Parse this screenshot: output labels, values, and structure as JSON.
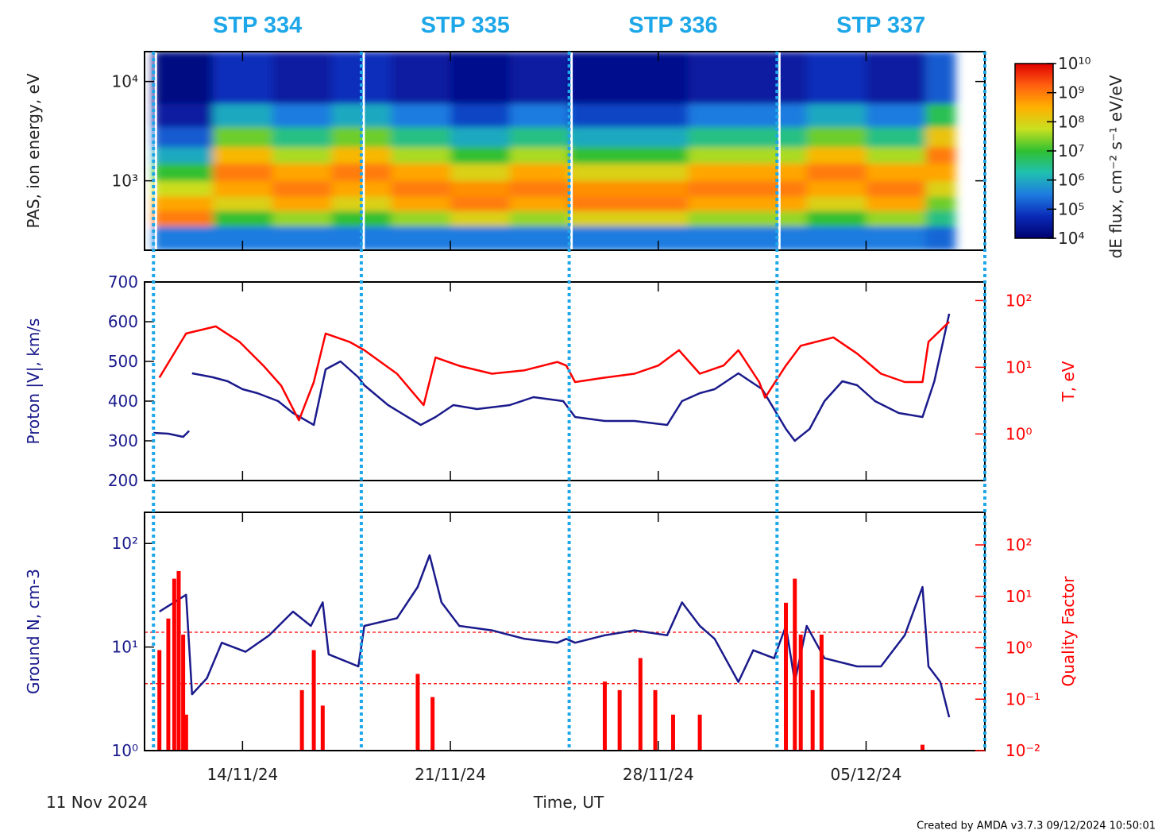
{
  "stp": {
    "boundaries": [
      0,
      7,
      14,
      21,
      28
    ],
    "labels": [
      "STP 334",
      "STP 335",
      "STP 336",
      "STP 337"
    ],
    "color": "#1ea7e8"
  },
  "time_axis": {
    "xlim": [
      -0.3,
      28
    ],
    "xticks": [
      {
        "value": 3,
        "label": "14/11/24"
      },
      {
        "value": 10,
        "label": "21/11/24"
      },
      {
        "value": 17,
        "label": "28/11/24"
      },
      {
        "value": 24,
        "label": "05/12/24"
      }
    ],
    "xlabel": "Time, UT",
    "start_label": "11 Nov 2024"
  },
  "footer": "Created by AMDA v3.7.3 09/12/2024 10:50:01",
  "chart_data": [
    {
      "type": "heatmap",
      "ylabel": "PAS, ion energy, eV",
      "ylog": true,
      "ylim": [
        200,
        20000
      ],
      "yticks": [
        {
          "value": 1000,
          "label": "10³"
        },
        {
          "value": 10000,
          "label": "10⁴"
        }
      ],
      "x_edges": [
        0,
        2,
        4,
        6,
        8,
        10,
        12,
        14,
        16,
        18,
        20,
        22,
        24,
        26,
        27
      ],
      "y_edges": [
        200,
        350,
        500,
        700,
        1000,
        1500,
        2200,
        3500,
        6000,
        20000
      ],
      "z": [
        [
          320000.0,
          320000.0,
          320000.0,
          320000.0,
          320000.0,
          320000.0,
          320000.0,
          320000.0,
          320000.0,
          320000.0,
          320000.0,
          320000.0,
          320000.0,
          200000.0
        ],
        [
          1000000000.0,
          10000000.0,
          32000000.0,
          10000000.0,
          32000000.0,
          100000000.0,
          32000000.0,
          100000000.0,
          100000000.0,
          32000000.0,
          32000000.0,
          10000000.0,
          32000000.0,
          3200000.0
        ],
        [
          400000000.0,
          100000000.0,
          400000000.0,
          100000000.0,
          400000000.0,
          1000000000.0,
          400000000.0,
          1000000000.0,
          1000000000.0,
          400000000.0,
          400000000.0,
          100000000.0,
          400000000.0,
          20000000.0
        ],
        [
          63000000.0,
          400000000.0,
          1000000000.0,
          400000000.0,
          1000000000.0,
          630000000.0,
          1000000000.0,
          630000000.0,
          630000000.0,
          1000000000.0,
          1000000000.0,
          400000000.0,
          1000000000.0,
          100000000.0
        ],
        [
          10000000.0,
          1000000000.0,
          400000000.0,
          1000000000.0,
          400000000.0,
          100000000.0,
          400000000.0,
          100000000.0,
          100000000.0,
          400000000.0,
          400000000.0,
          1000000000.0,
          400000000.0,
          400000000.0
        ],
        [
          1000000.0,
          250000000.0,
          40000000.0,
          250000000.0,
          40000000.0,
          10000000.0,
          40000000.0,
          10000000.0,
          10000000.0,
          40000000.0,
          40000000.0,
          250000000.0,
          40000000.0,
          1000000000.0
        ],
        [
          160000.0,
          20000000.0,
          3200000.0,
          20000000.0,
          3200000.0,
          1000000.0,
          3200000.0,
          1000000.0,
          1000000.0,
          3200000.0,
          3200000.0,
          20000000.0,
          3200000.0,
          160000000.0
        ],
        [
          32000.0,
          1000000.0,
          320000.0,
          1000000.0,
          320000.0,
          100000.0,
          320000.0,
          100000.0,
          100000.0,
          320000.0,
          320000.0,
          1000000.0,
          320000.0,
          6300000.0
        ],
        [
          16000.0,
          63000.0,
          32000.0,
          63000.0,
          32000.0,
          20000.0,
          32000.0,
          20000.0,
          20000.0,
          32000.0,
          32000.0,
          63000.0,
          32000.0,
          160000.0
        ]
      ],
      "colorbar": {
        "label": "dE flux, cm⁻² s⁻¹ eV/eV",
        "zlim": [
          10000.0,
          10000000000.0
        ],
        "log": true,
        "ticks": [
          {
            "value": 10000.0,
            "label": "10⁴"
          },
          {
            "value": 100000.0,
            "label": "10⁵"
          },
          {
            "value": 1000000.0,
            "label": "10⁶"
          },
          {
            "value": 10000000.0,
            "label": "10⁷"
          },
          {
            "value": 100000000.0,
            "label": "10⁸"
          },
          {
            "value": 1000000000.0,
            "label": "10⁹"
          },
          {
            "value": 10000000000.0,
            "label": "10¹⁰"
          }
        ],
        "colors": [
          "#00006e",
          "#0a2ab8",
          "#1e7be0",
          "#20c0b0",
          "#30c030",
          "#c8e020",
          "#ffb000",
          "#ff6010",
          "#e00000"
        ]
      }
    },
    {
      "type": "line",
      "ylabel": "Proton |V|, km/s",
      "y2label": "T, eV",
      "ylim": [
        200,
        700
      ],
      "yticks": [
        200,
        300,
        400,
        500,
        600,
        700
      ],
      "y2log": true,
      "y2lim": [
        0.2,
        190
      ],
      "y2ticks": [
        {
          "value": 1,
          "label": "10⁰"
        },
        {
          "value": 10,
          "label": "10¹"
        },
        {
          "value": 100,
          "label": "10²"
        }
      ],
      "series": [
        {
          "color": "#1a1a8c",
          "x": [
            0,
            0.5,
            1.0,
            1.2,
            1.25,
            1.3,
            2.0,
            2.5,
            3.0,
            3.5,
            4.2,
            4.7,
            5.4,
            5.8,
            6.3,
            6.9,
            7.1,
            7.9,
            9.0,
            9.5,
            10.1,
            10.9,
            12.0,
            12.8,
            13.8,
            14.2,
            15.2,
            16.2,
            17.3,
            17.8,
            18.4,
            18.9,
            19.7,
            20.5,
            20.9,
            21.3,
            21.6,
            22.1,
            22.6,
            23.2,
            23.7,
            24.3,
            25.1,
            25.9,
            26.3,
            26.8
          ],
          "values": [
            320,
            318,
            310,
            325,
            null,
            470,
            460,
            450,
            430,
            420,
            400,
            370,
            340,
            480,
            500,
            460,
            440,
            390,
            340,
            360,
            390,
            380,
            390,
            410,
            400,
            360,
            350,
            350,
            340,
            400,
            420,
            430,
            470,
            430,
            380,
            330,
            300,
            330,
            400,
            450,
            440,
            400,
            370,
            360,
            450,
            620
          ]
        },
        {
          "color": "#ff0000",
          "axis": "y2",
          "x": [
            0.2,
            1.1,
            2.1,
            2.9,
            3.7,
            4.3,
            4.9,
            5.4,
            5.8,
            6.6,
            7.1,
            8.2,
            9.1,
            9.5,
            10.3,
            11.4,
            12.5,
            13.6,
            13.9,
            14.2,
            15.2,
            16.2,
            17.0,
            17.7,
            18.4,
            19.2,
            19.7,
            20.4,
            20.6,
            21.3,
            21.8,
            22.9,
            23.7,
            24.5,
            25.3,
            25.9,
            26.1,
            26.8
          ],
          "values": [
            7,
            32,
            41,
            24,
            10.6,
            5.3,
            1.6,
            6,
            32,
            24,
            18,
            8,
            2.7,
            14,
            10.5,
            8,
            9,
            12,
            10.6,
            6,
            7,
            8,
            10.6,
            18,
            8,
            10.6,
            18,
            6,
            3.5,
            10.6,
            21,
            28,
            16,
            8,
            6,
            6,
            24,
            48
          ]
        }
      ]
    },
    {
      "type": "line",
      "ylabel": "Ground N, cm-3",
      "y2label": "Quality Factor",
      "ylog": true,
      "ylim": [
        1,
        200
      ],
      "yticks": [
        {
          "value": 1,
          "label": "10⁰"
        },
        {
          "value": 10,
          "label": "10¹"
        },
        {
          "value": 100,
          "label": "10²"
        }
      ],
      "y2log": true,
      "y2lim": [
        0.01,
        430
      ],
      "y2ticks": [
        {
          "value": 0.01,
          "label": "10⁻²"
        },
        {
          "value": 0.1,
          "label": "10⁻¹"
        },
        {
          "value": 1,
          "label": "10⁰"
        },
        {
          "value": 10,
          "label": "10¹"
        },
        {
          "value": 100,
          "label": "10²"
        }
      ],
      "y2_reference_lines": [
        2,
        0.2
      ],
      "series": [
        {
          "color": "#1a1a8c",
          "x": [
            0.2,
            1.1,
            1.3,
            1.8,
            2.3,
            3.1,
            3.9,
            4.7,
            5.3,
            5.7,
            5.9,
            6.9,
            7.1,
            8.2,
            8.9,
            9.3,
            9.7,
            10.3,
            11.4,
            12.5,
            13.6,
            13.9,
            14.2,
            15.2,
            16.2,
            17.3,
            17.8,
            18.4,
            18.9,
            19.7,
            20.2,
            20.9,
            21.3,
            21.6,
            22.0,
            22.6,
            23.7,
            24.5,
            25.3,
            25.9,
            26.1,
            26.5,
            26.8
          ],
          "values": [
            22,
            32,
            3.5,
            5,
            11,
            9,
            13,
            22,
            16,
            27,
            8.5,
            6.5,
            16,
            19,
            38,
            77,
            27,
            16,
            14.5,
            12,
            11,
            12,
            11,
            13,
            14.5,
            13,
            27,
            16,
            12,
            4.6,
            9.3,
            7.8,
            16,
            4.6,
            16,
            7.8,
            6.5,
            6.5,
            13,
            38,
            6.5,
            4.6,
            2.1
          ]
        },
        {
          "color": "#ff0000",
          "axis": "y2",
          "style": "stem",
          "x": [
            0.2,
            0.5,
            0.7,
            0.85,
            1.0,
            1.1,
            5.0,
            5.4,
            5.7,
            8.9,
            9.4,
            15.2,
            15.7,
            16.4,
            16.9,
            17.5,
            18.4,
            21.3,
            21.6,
            21.8,
            22.2,
            22.5,
            25.9
          ],
          "values": [
            0.9,
            3.7,
            22,
            31,
            1.8,
            0.05,
            0.15,
            0.9,
            0.075,
            0.31,
            0.11,
            0.22,
            0.15,
            0.63,
            0.15,
            0.05,
            0.05,
            7.5,
            22,
            1.8,
            0.15,
            1.8,
            0.013
          ]
        }
      ]
    }
  ]
}
